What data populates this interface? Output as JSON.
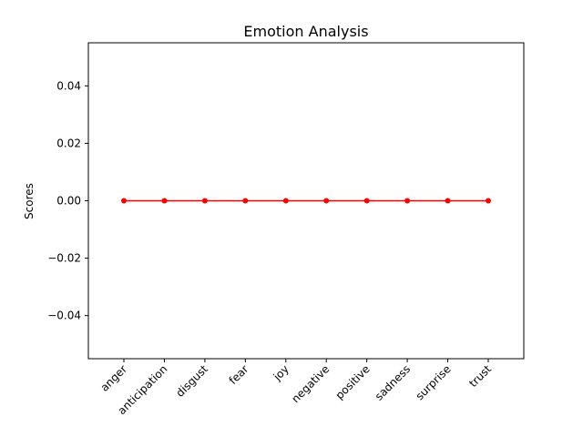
{
  "chart_data": {
    "type": "line",
    "title": "Emotion Analysis",
    "xlabel": "",
    "ylabel": "Scores",
    "categories": [
      "anger",
      "anticipation",
      "disgust",
      "fear",
      "joy",
      "negative",
      "positive",
      "sadness",
      "surprise",
      "trust"
    ],
    "series": [
      {
        "values": [
          0,
          0,
          0,
          0,
          0,
          0,
          0,
          0,
          0,
          0
        ],
        "color": "#ff0000",
        "marker": "circle"
      }
    ],
    "ylim": [
      -0.055,
      0.055
    ],
    "yticks": [
      {
        "value": 0.04,
        "label": "0.04"
      },
      {
        "value": 0.02,
        "label": "0.02"
      },
      {
        "value": 0.0,
        "label": "0.00"
      },
      {
        "value": -0.02,
        "label": "−0.02"
      },
      {
        "value": -0.04,
        "label": "−0.04"
      }
    ],
    "xtick_rotation": 45,
    "grid": false,
    "legend": "none"
  }
}
